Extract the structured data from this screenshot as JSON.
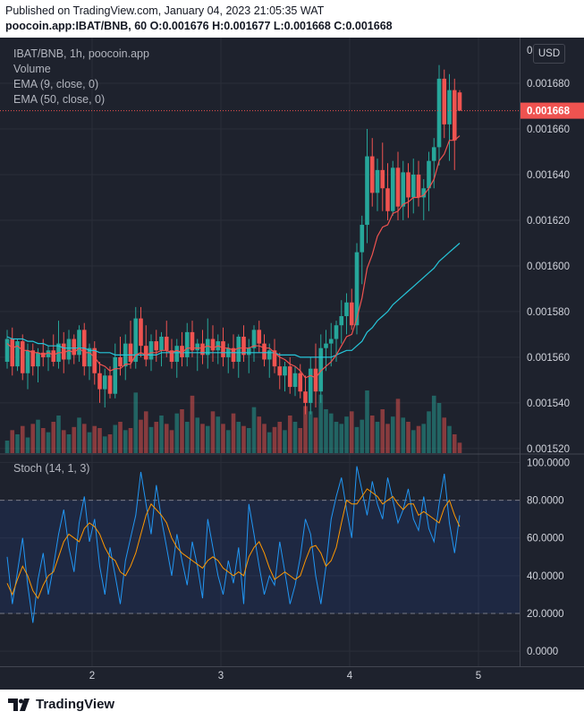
{
  "header": {
    "published": "Published on TradingView.com, January 04, 2023 21:05:35 WAT",
    "symbol_line": "poocoin.app:IBAT/BNB, 60 O:0.001676 H:0.001677 L:0.001668 C:0.001668"
  },
  "legend": {
    "title": "IBAT/BNB, 1h, poocoin.app",
    "volume": "Volume",
    "ema9": "EMA (9, close, 0)",
    "ema50": "EMA (50, close, 0)"
  },
  "currency": "USD",
  "price_axis_top_partial": "0",
  "last_price": "0.001668",
  "stoch_legend": "Stoch (14, 1, 3)",
  "footer": {
    "brand": "TradingView"
  },
  "colors": {
    "up": "#26a69a",
    "down": "#ef5350",
    "ema9": "#ef5350",
    "ema50": "#26c6da",
    "stoch_k": "#2196f3",
    "stoch_d": "#ff9800",
    "background": "#1e222d"
  },
  "chart_data": [
    {
      "type": "candlestick",
      "title": "IBAT/BNB, 1h, poocoin.app",
      "x_ticks": [
        "2",
        "3",
        "4",
        "5"
      ],
      "y_ticks": [
        "0.001520",
        "0.001540",
        "0.001560",
        "0.001580",
        "0.001600",
        "0.001620",
        "0.001640",
        "0.001660",
        "0.001680"
      ],
      "ylim": [
        0.001518,
        0.0017
      ],
      "last_price": 0.001668,
      "candles": [
        [
          0.001558,
          0.001572,
          0.001555,
          0.001568
        ],
        [
          0.001568,
          0.001573,
          0.001552,
          0.001556
        ],
        [
          0.001556,
          0.001568,
          0.001554,
          0.001567
        ],
        [
          0.001567,
          0.00157,
          0.00155,
          0.001553
        ],
        [
          0.001553,
          0.001566,
          0.001546,
          0.001563
        ],
        [
          0.001563,
          0.001566,
          0.001552,
          0.001556
        ],
        [
          0.001556,
          0.001564,
          0.001549,
          0.001562
        ],
        [
          0.001562,
          0.001568,
          0.001556,
          0.00156
        ],
        [
          0.00156,
          0.001565,
          0.001554,
          0.001563
        ],
        [
          0.001563,
          0.00157,
          0.001556,
          0.001558
        ],
        [
          0.001558,
          0.001576,
          0.001555,
          0.001566
        ],
        [
          0.001566,
          0.001571,
          0.001553,
          0.001559
        ],
        [
          0.001559,
          0.001572,
          0.001557,
          0.001568
        ],
        [
          0.001568,
          0.00157,
          0.001557,
          0.001561
        ],
        [
          0.001561,
          0.001574,
          0.001558,
          0.001572
        ],
        [
          0.001572,
          0.001575,
          0.001552,
          0.001556
        ],
        [
          0.001556,
          0.001566,
          0.00155,
          0.001564
        ],
        [
          0.001564,
          0.001567,
          0.001548,
          0.001553
        ],
        [
          0.001553,
          0.001558,
          0.00154,
          0.001546
        ],
        [
          0.001546,
          0.001555,
          0.001538,
          0.001552
        ],
        [
          0.001552,
          0.001556,
          0.001542,
          0.001544
        ],
        [
          0.001544,
          0.001566,
          0.001542,
          0.00156
        ],
        [
          0.00156,
          0.001569,
          0.001552,
          0.001556
        ],
        [
          0.001556,
          0.00157,
          0.00155,
          0.001566
        ],
        [
          0.001566,
          0.001576,
          0.001555,
          0.001558
        ],
        [
          0.001558,
          0.001582,
          0.001555,
          0.001577
        ],
        [
          0.001577,
          0.001582,
          0.00156,
          0.001565
        ],
        [
          0.001565,
          0.001574,
          0.001556,
          0.001559
        ],
        [
          0.001559,
          0.00157,
          0.001554,
          0.001567
        ],
        [
          0.001567,
          0.001572,
          0.001558,
          0.001563
        ],
        [
          0.001563,
          0.001571,
          0.001556,
          0.001569
        ],
        [
          0.001569,
          0.001576,
          0.00156,
          0.001563
        ],
        [
          0.001563,
          0.001568,
          0.001555,
          0.001558
        ],
        [
          0.001558,
          0.001568,
          0.001551,
          0.001565
        ],
        [
          0.001565,
          0.001571,
          0.001556,
          0.00156
        ],
        [
          0.00156,
          0.001575,
          0.001556,
          0.001571
        ],
        [
          0.001571,
          0.001576,
          0.00156,
          0.001563
        ],
        [
          0.001563,
          0.001568,
          0.001554,
          0.001566
        ],
        [
          0.001566,
          0.001572,
          0.001557,
          0.001561
        ],
        [
          0.001561,
          0.001577,
          0.001555,
          0.001568
        ],
        [
          0.001568,
          0.001574,
          0.001558,
          0.001563
        ],
        [
          0.001563,
          0.00157,
          0.001557,
          0.001567
        ],
        [
          0.001567,
          0.001573,
          0.001556,
          0.00156
        ],
        [
          0.00156,
          0.001566,
          0.001553,
          0.001564
        ],
        [
          0.001564,
          0.00157,
          0.001555,
          0.001558
        ],
        [
          0.001558,
          0.00157,
          0.001551,
          0.001569
        ],
        [
          0.001569,
          0.001574,
          0.001558,
          0.001561
        ],
        [
          0.001561,
          0.001568,
          0.001553,
          0.001564
        ],
        [
          0.001564,
          0.001574,
          0.001558,
          0.001572
        ],
        [
          0.001572,
          0.001576,
          0.001562,
          0.001566
        ],
        [
          0.001566,
          0.00157,
          0.001556,
          0.001559
        ],
        [
          0.001559,
          0.001566,
          0.001551,
          0.001563
        ],
        [
          0.001563,
          0.001568,
          0.001553,
          0.001556
        ],
        [
          0.001556,
          0.001562,
          0.001546,
          0.001552
        ],
        [
          0.001552,
          0.001558,
          0.001545,
          0.001556
        ],
        [
          0.001556,
          0.00156,
          0.001544,
          0.001547
        ],
        [
          0.001547,
          0.001556,
          0.001543,
          0.001553
        ],
        [
          0.001553,
          0.001557,
          0.001542,
          0.001545
        ],
        [
          0.001545,
          0.001552,
          0.001535,
          0.00154
        ],
        [
          0.00154,
          0.00156,
          0.001535,
          0.001555
        ],
        [
          0.001555,
          0.001566,
          0.001538,
          0.001545
        ],
        [
          0.001545,
          0.00157,
          0.00154,
          0.001564
        ],
        [
          0.001564,
          0.001572,
          0.001554,
          0.001566
        ],
        [
          0.001566,
          0.001575,
          0.001556,
          0.001568
        ],
        [
          0.001568,
          0.001576,
          0.001558,
          0.001574
        ],
        [
          0.001574,
          0.001585,
          0.001566,
          0.001578
        ],
        [
          0.001578,
          0.001588,
          0.00157,
          0.001584
        ],
        [
          0.001584,
          0.00159,
          0.001572,
          0.001574
        ],
        [
          0.001574,
          0.00161,
          0.00157,
          0.001606
        ],
        [
          0.001606,
          0.001622,
          0.001592,
          0.001618
        ],
        [
          0.001618,
          0.00166,
          0.00161,
          0.001648
        ],
        [
          0.001648,
          0.001656,
          0.001626,
          0.001632
        ],
        [
          0.001632,
          0.001647,
          0.001624,
          0.001642
        ],
        [
          0.001642,
          0.001654,
          0.001624,
          0.001634
        ],
        [
          0.001634,
          0.001645,
          0.00162,
          0.001624
        ],
        [
          0.001624,
          0.001646,
          0.001622,
          0.001643
        ],
        [
          0.001643,
          0.00165,
          0.00162,
          0.001626
        ],
        [
          0.001626,
          0.001646,
          0.00162,
          0.001641
        ],
        [
          0.001641,
          0.001645,
          0.001621,
          0.00163
        ],
        [
          0.00163,
          0.001647,
          0.001623,
          0.00164
        ],
        [
          0.00164,
          0.001646,
          0.001626,
          0.00163
        ],
        [
          0.00163,
          0.001638,
          0.00162,
          0.001634
        ],
        [
          0.001634,
          0.00165,
          0.001624,
          0.001646
        ],
        [
          0.001646,
          0.001656,
          0.001634,
          0.001652
        ],
        [
          0.001652,
          0.001688,
          0.001644,
          0.001682
        ],
        [
          0.001682,
          0.001686,
          0.001656,
          0.001662
        ],
        [
          0.001662,
          0.001684,
          0.001646,
          0.001677
        ],
        [
          0.001677,
          0.001682,
          0.001642,
          0.001655
        ],
        [
          0.001676,
          0.001677,
          0.001668,
          0.001668
        ]
      ],
      "ema9": [
        0.001566,
        0.001564,
        0.001565,
        0.001563,
        0.001563,
        0.001562,
        0.001562,
        0.001561,
        0.001562,
        0.001561,
        0.001562,
        0.001562,
        0.001563,
        0.001562,
        0.001564,
        0.001562,
        0.001562,
        0.00156,
        0.001557,
        0.001556,
        0.001554,
        0.001555,
        0.001555,
        0.001557,
        0.001557,
        0.001561,
        0.001562,
        0.001561,
        0.001562,
        0.001562,
        0.001563,
        0.001563,
        0.001562,
        0.001563,
        0.001562,
        0.001564,
        0.001564,
        0.001564,
        0.001564,
        0.001565,
        0.001564,
        0.001565,
        0.001564,
        0.001564,
        0.001563,
        0.001564,
        0.001564,
        0.001564,
        0.001565,
        0.001565,
        0.001564,
        0.001564,
        0.001562,
        0.00156,
        0.001559,
        0.001557,
        0.001556,
        0.001554,
        0.001551,
        0.001552,
        0.001551,
        0.001554,
        0.001556,
        0.001558,
        0.001561,
        0.001565,
        0.001569,
        0.00157,
        0.001577,
        0.001586,
        0.001599,
        0.001605,
        0.001613,
        0.001617,
        0.001618,
        0.001623,
        0.001624,
        0.001627,
        0.001628,
        0.00163,
        0.00163,
        0.001631,
        0.001634,
        0.001638,
        0.001646,
        0.001649,
        0.001655,
        0.001655,
        0.001657
      ],
      "ema50": [
        0.001569,
        0.001568,
        0.001568,
        0.001568,
        0.001567,
        0.001567,
        0.001566,
        0.001566,
        0.001565,
        0.001565,
        0.001565,
        0.001564,
        0.001564,
        0.001564,
        0.001564,
        0.001564,
        0.001563,
        0.001563,
        0.001562,
        0.001562,
        0.001562,
        0.001561,
        0.001561,
        0.001561,
        0.001561,
        0.001561,
        0.001561,
        0.001561,
        0.001561,
        0.001561,
        0.001562,
        0.001562,
        0.001562,
        0.001562,
        0.001562,
        0.001562,
        0.001562,
        0.001562,
        0.001562,
        0.001562,
        0.001562,
        0.001562,
        0.001562,
        0.001562,
        0.001562,
        0.001562,
        0.001562,
        0.001562,
        0.001562,
        0.001562,
        0.001562,
        0.001562,
        0.001562,
        0.001561,
        0.001561,
        0.001561,
        0.001561,
        0.00156,
        0.00156,
        0.00156,
        0.00156,
        0.00156,
        0.00156,
        0.00156,
        0.001561,
        0.001562,
        0.001563,
        0.001563,
        0.001565,
        0.001567,
        0.001571,
        0.001573,
        0.001576,
        0.001578,
        0.00158,
        0.001583,
        0.001585,
        0.001587,
        0.001589,
        0.001591,
        0.001593,
        0.001595,
        0.001597,
        0.001599,
        0.001602,
        0.001604,
        0.001606,
        0.001608,
        0.00161
      ],
      "volume": [
        12,
        22,
        18,
        26,
        15,
        28,
        32,
        24,
        20,
        30,
        36,
        22,
        18,
        25,
        34,
        28,
        20,
        26,
        24,
        16,
        18,
        27,
        30,
        22,
        24,
        58,
        32,
        40,
        25,
        30,
        36,
        28,
        22,
        38,
        42,
        30,
        55,
        34,
        28,
        26,
        40,
        35,
        28,
        22,
        38,
        30,
        26,
        24,
        44,
        35,
        28,
        20,
        25,
        30,
        22,
        36,
        30,
        24,
        45,
        40,
        34,
        56,
        42,
        38,
        30,
        28,
        35,
        40,
        25,
        32,
        60,
        36,
        30,
        42,
        28,
        35,
        52,
        34,
        30,
        22,
        26,
        28,
        40,
        55,
        48,
        34,
        26,
        18,
        10
      ]
    },
    {
      "type": "line",
      "title": "Stoch (14, 1, 3)",
      "y_ticks": [
        "0.0000",
        "20.0000",
        "40.0000",
        "60.0000",
        "80.0000",
        "100.0000"
      ],
      "ylim": [
        -8,
        104
      ],
      "bands": [
        20,
        80
      ],
      "series": [
        {
          "name": "",
          "values": [
            50,
            25,
            42,
            60,
            35,
            15,
            38,
            52,
            30,
            45,
            62,
            75,
            55,
            42,
            68,
            82,
            58,
            70,
            45,
            30,
            55,
            40,
            25,
            48,
            60,
            72,
            95,
            78,
            62,
            88,
            70,
            55,
            40,
            62,
            48,
            35,
            58,
            45,
            28,
            70,
            55,
            40,
            30,
            48,
            36,
            55,
            25,
            78,
            62,
            45,
            30,
            40,
            35,
            58,
            42,
            25,
            35,
            50,
            70,
            62,
            40,
            25,
            45,
            70,
            82,
            92,
            75,
            60,
            98,
            85,
            72,
            90,
            78,
            70,
            92,
            80,
            68,
            75,
            86,
            70,
            64,
            82,
            65,
            58,
            78,
            94,
            68,
            52,
            72
          ]
        },
        {
          "name": "",
          "values": [
            36,
            30,
            38,
            45,
            40,
            32,
            28,
            35,
            40,
            42,
            50,
            58,
            62,
            60,
            58,
            65,
            68,
            66,
            62,
            55,
            50,
            48,
            42,
            40,
            45,
            52,
            62,
            72,
            78,
            75,
            72,
            68,
            60,
            55,
            52,
            50,
            48,
            46,
            44,
            48,
            50,
            48,
            44,
            42,
            40,
            42,
            40,
            50,
            55,
            58,
            52,
            44,
            38,
            40,
            42,
            40,
            38,
            40,
            48,
            55,
            56,
            52,
            45,
            48,
            55,
            68,
            80,
            78,
            78,
            82,
            86,
            84,
            82,
            78,
            80,
            82,
            78,
            75,
            78,
            78,
            72,
            74,
            72,
            70,
            68,
            76,
            80,
            72,
            66
          ]
        }
      ]
    }
  ]
}
